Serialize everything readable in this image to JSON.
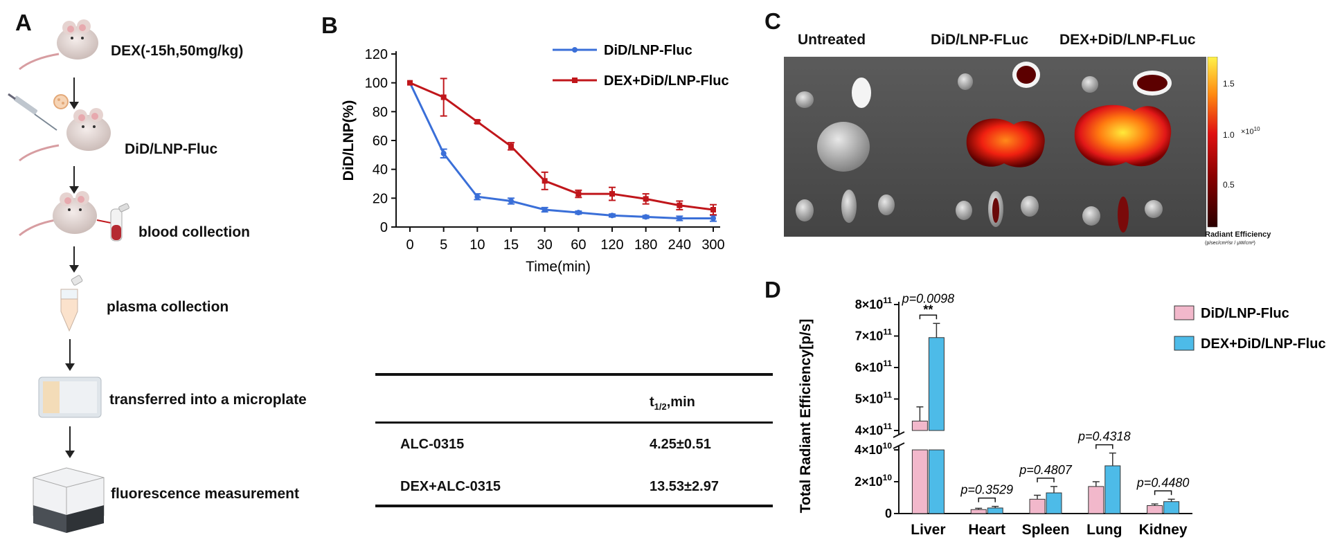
{
  "panels": {
    "a": "A",
    "b": "B",
    "c": "C",
    "d": "D"
  },
  "panel_a": {
    "steps": [
      {
        "label": "DEX(-15h,50mg/kg)"
      },
      {
        "label": "DiD/LNP-Fluc"
      },
      {
        "label": "blood collection"
      },
      {
        "label": "plasma collection"
      },
      {
        "label": "transferred into a microplate"
      },
      {
        "label": "fluorescence measurement"
      }
    ]
  },
  "table_b": {
    "header_col1": "",
    "header_col2_main": "t",
    "header_col2_sub": "1/2",
    "header_col2_unit": ",min",
    "rows": [
      {
        "name": "ALC-0315",
        "value": "4.25±0.51"
      },
      {
        "name": "DEX+ALC-0315",
        "value": "13.53±2.97"
      }
    ]
  },
  "panel_c": {
    "group_labels": [
      "Untreated",
      "DiD/LNP-FLuc",
      "DEX+DiD/LNP-FLuc"
    ],
    "colorbar": {
      "ticks": [
        "1.5",
        "1.0",
        "0.5"
      ],
      "exponent": "×10",
      "exponent_power": "10",
      "title": "Radiant Efficiency",
      "units": "(p/sec/cm²/sr / μW/cm²)"
    }
  },
  "chart_data": [
    {
      "type": "line",
      "panel": "B",
      "title": "",
      "xlabel": "Time(min)",
      "ylabel": "DiD/LNP(%)",
      "categories": [
        "0",
        "5",
        "10",
        "15",
        "30",
        "60",
        "120",
        "180",
        "240",
        "300"
      ],
      "ylim": [
        0,
        120
      ],
      "yticks": [
        "0",
        "20",
        "40",
        "60",
        "80",
        "100",
        "120"
      ],
      "legend_position": "top-right",
      "series": [
        {
          "name": "DiD/LNP-Fluc",
          "color": "#3a6fd8",
          "values": [
            100,
            51,
            21,
            18,
            12,
            10,
            8,
            7,
            6,
            6
          ],
          "errors": [
            0,
            3,
            2,
            2,
            1.5,
            1,
            1,
            1,
            1.5,
            2
          ]
        },
        {
          "name": "DEX+DiD/LNP-Fluc",
          "color": "#c0161b",
          "values": [
            100,
            90,
            73,
            56,
            32,
            23,
            23,
            19.5,
            15,
            12
          ],
          "errors": [
            0,
            13,
            1,
            2.5,
            6,
            2.5,
            4.5,
            3.5,
            3,
            3.5
          ]
        }
      ]
    },
    {
      "type": "bar",
      "panel": "D",
      "title": "",
      "xlabel": "",
      "ylabel": "Total Radiant Efficiency[p/s]",
      "categories": [
        "Liver",
        "Heart",
        "Spleen",
        "Lung",
        "Kidney"
      ],
      "axis_break": true,
      "yticks_upper": [
        {
          "base": "4×10",
          "exp": "11",
          "value": 400000000000
        },
        {
          "base": "5×10",
          "exp": "11",
          "value": 500000000000
        },
        {
          "base": "6×10",
          "exp": "11",
          "value": 600000000000
        },
        {
          "base": "7×10",
          "exp": "11",
          "value": 700000000000
        },
        {
          "base": "8×10",
          "exp": "11",
          "value": 800000000000
        }
      ],
      "yticks_lower": [
        {
          "base": "0",
          "exp": "",
          "value": 0
        },
        {
          "base": "2×10",
          "exp": "10",
          "value": 20000000000
        },
        {
          "base": "4×10",
          "exp": "10",
          "value": 40000000000
        }
      ],
      "legend_position": "top-right",
      "series": [
        {
          "name": "DiD/LNP-Fluc",
          "color": "#f2b8cb",
          "values": [
            430000000000,
            2500000000,
            9000000000,
            17000000000,
            5000000000
          ],
          "errors": [
            45000000000,
            800000000,
            2500000000,
            3000000000,
            1000000000
          ]
        },
        {
          "name": "DEX+DiD/LNP-Fluc",
          "color": "#4dbbe8",
          "values": [
            695000000000,
            3500000000,
            13000000000,
            30000000000,
            7500000000
          ],
          "errors": [
            45000000000,
            1000000000,
            4000000000,
            8000000000,
            1500000000
          ]
        }
      ],
      "annotations": [
        {
          "category": "Liver",
          "p": "p=0.0098",
          "stars": "**"
        },
        {
          "category": "Heart",
          "p": "p=0.3529",
          "stars": ""
        },
        {
          "category": "Spleen",
          "p": "p=0.4807",
          "stars": ""
        },
        {
          "category": "Lung",
          "p": "p=0.4318",
          "stars": ""
        },
        {
          "category": "Kidney",
          "p": "p=0.4480",
          "stars": ""
        }
      ]
    }
  ]
}
